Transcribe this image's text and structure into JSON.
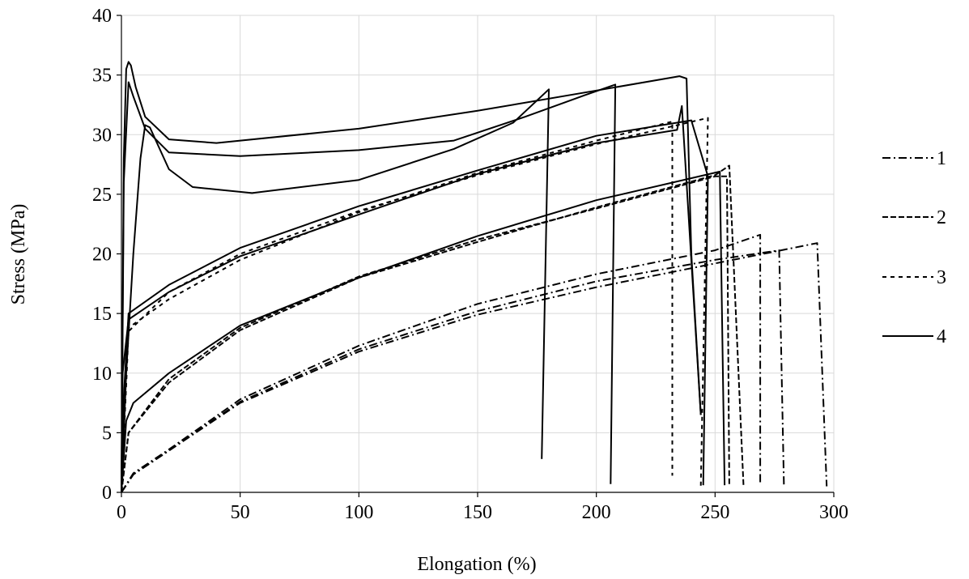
{
  "chart_data": {
    "type": "line",
    "title": "",
    "xlabel": "Elongation (%)",
    "ylabel": "Stress (MPa)",
    "xlim": [
      0,
      300
    ],
    "ylim": [
      0,
      40
    ],
    "xticks": [
      0,
      50,
      100,
      150,
      200,
      250,
      300
    ],
    "yticks": [
      0,
      5,
      10,
      15,
      20,
      25,
      30,
      35,
      40
    ],
    "grid": true,
    "legend_position": "right",
    "series": [
      {
        "name": "1",
        "style": "dashdot",
        "curves": [
          [
            [
              0,
              0
            ],
            [
              5,
              1.5
            ],
            [
              20,
              3.5
            ],
            [
              50,
              7.5
            ],
            [
              100,
              11.8
            ],
            [
              150,
              14.9
            ],
            [
              200,
              17.2
            ],
            [
              250,
              19.2
            ],
            [
              293,
              20.9
            ],
            [
              297,
              0.5
            ]
          ],
          [
            [
              0,
              0
            ],
            [
              5,
              1.5
            ],
            [
              20,
              3.5
            ],
            [
              50,
              7.6
            ],
            [
              100,
              12
            ],
            [
              150,
              15.2
            ],
            [
              200,
              17.7
            ],
            [
              250,
              19.5
            ],
            [
              277,
              20.3
            ],
            [
              279,
              0.5
            ]
          ],
          [
            [
              0,
              0
            ],
            [
              5,
              1.6
            ],
            [
              20,
              3.6
            ],
            [
              50,
              7.8
            ],
            [
              100,
              12.3
            ],
            [
              150,
              15.8
            ],
            [
              200,
              18.3
            ],
            [
              250,
              20.3
            ],
            [
              269,
              21.6
            ],
            [
              269,
              0.6
            ]
          ]
        ]
      },
      {
        "name": "2",
        "style": "dash",
        "curves": [
          [
            [
              0,
              0
            ],
            [
              3,
              5
            ],
            [
              20,
              9.5
            ],
            [
              50,
              13.8
            ],
            [
              100,
              18.1
            ],
            [
              150,
              21.2
            ],
            [
              200,
              23.8
            ],
            [
              250,
              26.5
            ],
            [
              255,
              26.5
            ],
            [
              256,
              0.5
            ]
          ],
          [
            [
              0,
              0
            ],
            [
              3,
              5
            ],
            [
              20,
              9.2
            ],
            [
              50,
              13.6
            ],
            [
              100,
              18
            ],
            [
              150,
              21
            ],
            [
              200,
              23.9
            ],
            [
              250,
              26.6
            ],
            [
              256,
              27.4
            ],
            [
              262,
              0.5
            ]
          ]
        ]
      },
      {
        "name": "3",
        "style": "shortdash",
        "curves": [
          [
            [
              0,
              0
            ],
            [
              3,
              13.5
            ],
            [
              20,
              16.8
            ],
            [
              50,
              20
            ],
            [
              100,
              23.6
            ],
            [
              150,
              26.6
            ],
            [
              200,
              29.2
            ],
            [
              247,
              31.4
            ],
            [
              244,
              0.5
            ]
          ],
          [
            [
              0,
              0
            ],
            [
              3,
              13.8
            ],
            [
              20,
              16.2
            ],
            [
              50,
              19.5
            ],
            [
              100,
              23.5
            ],
            [
              150,
              26.8
            ],
            [
              200,
              29.5
            ],
            [
              232,
              31.1
            ],
            [
              232,
              1.4
            ]
          ]
        ]
      },
      {
        "name": "4",
        "style": "solid",
        "curves": [
          [
            [
              0,
              0
            ],
            [
              1,
              28
            ],
            [
              2,
              35.5
            ],
            [
              3,
              36.1
            ],
            [
              4,
              35.8
            ],
            [
              6,
              34
            ],
            [
              10,
              31.5
            ],
            [
              20,
              29.6
            ],
            [
              40,
              29.3
            ],
            [
              100,
              30.5
            ],
            [
              150,
              32
            ],
            [
              200,
              33.7
            ],
            [
              235,
              34.9
            ],
            [
              238,
              34.7
            ],
            [
              240,
              20
            ],
            [
              244,
              6.5
            ]
          ],
          [
            [
              0,
              0
            ],
            [
              1,
              26
            ],
            [
              3,
              34.4
            ],
            [
              5,
              33.2
            ],
            [
              10,
              30.5
            ],
            [
              20,
              28.5
            ],
            [
              50,
              28.2
            ],
            [
              100,
              28.7
            ],
            [
              140,
              29.5
            ],
            [
              170,
              31.5
            ],
            [
              195,
              33.3
            ],
            [
              208,
              34.2
            ],
            [
              206,
              0.7
            ]
          ],
          [
            [
              0,
              0
            ],
            [
              2,
              10
            ],
            [
              5,
              20
            ],
            [
              8,
              28
            ],
            [
              10,
              30.8
            ],
            [
              12,
              30.6
            ],
            [
              20,
              27.1
            ],
            [
              30,
              25.6
            ],
            [
              55,
              25.1
            ],
            [
              100,
              26.2
            ],
            [
              140,
              28.8
            ],
            [
              165,
              31
            ],
            [
              180,
              33.8
            ],
            [
              177,
              2.8
            ]
          ],
          [
            [
              0,
              0
            ],
            [
              0.5,
              10
            ],
            [
              3,
              14.5
            ],
            [
              20,
              16.8
            ],
            [
              50,
              19.8
            ],
            [
              100,
              23.3
            ],
            [
              150,
              26.7
            ],
            [
              200,
              29.3
            ],
            [
              234,
              30.4
            ],
            [
              236,
              32.4
            ],
            [
              244,
              6.5
            ]
          ],
          [
            [
              0,
              0
            ],
            [
              1,
              8
            ],
            [
              3,
              15
            ],
            [
              20,
              17.4
            ],
            [
              50,
              20.5
            ],
            [
              100,
              24
            ],
            [
              150,
              27
            ],
            [
              200,
              29.9
            ],
            [
              240,
              31.2
            ],
            [
              247,
              26.5
            ],
            [
              245,
              0.6
            ]
          ],
          [
            [
              0,
              0
            ],
            [
              2,
              6
            ],
            [
              5,
              7.5
            ],
            [
              20,
              10
            ],
            [
              50,
              14
            ],
            [
              100,
              18
            ],
            [
              150,
              21.5
            ],
            [
              200,
              24.5
            ],
            [
              252,
              26.9
            ],
            [
              254,
              0.6
            ]
          ]
        ]
      }
    ]
  }
}
